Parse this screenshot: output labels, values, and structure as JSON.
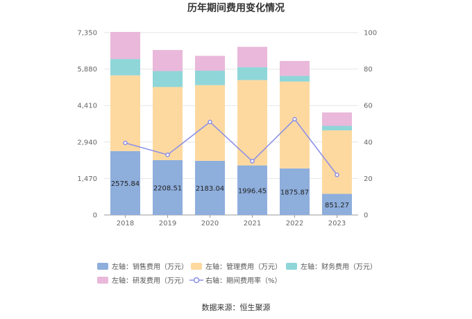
{
  "chart_data": {
    "type": "bar",
    "title": "历年期间费用变化情况",
    "categories": [
      "2018",
      "2019",
      "2020",
      "2021",
      "2022",
      "2023"
    ],
    "y_left": {
      "range": [
        0,
        7350
      ],
      "ticks": [
        "0",
        "1,470",
        "2,940",
        "4,410",
        "5,880",
        "7,350"
      ]
    },
    "y_right": {
      "range": [
        0,
        100
      ],
      "ticks": [
        "0",
        "20",
        "40",
        "60",
        "80",
        "100"
      ]
    },
    "series": [
      {
        "name": "左轴：销售费用（万元）",
        "axis": "left",
        "kind": "bar",
        "color": "#8eaedc",
        "values": [
          2575.84,
          2208.51,
          2183.04,
          1996.45,
          1875.87,
          851.27
        ],
        "labels": [
          "2575.84",
          "2208.51",
          "2183.04",
          "1996.45",
          "1875.87",
          "851.27"
        ]
      },
      {
        "name": "左轴：管理费用（万元）",
        "axis": "left",
        "kind": "bar",
        "color": "#fdd9a0",
        "values": [
          3050,
          2950,
          3050,
          3440,
          3500,
          2560
        ]
      },
      {
        "name": "左轴：财务费用（万元）",
        "axis": "left",
        "kind": "bar",
        "color": "#8fd6d9",
        "values": [
          660,
          640,
          580,
          520,
          230,
          180
        ]
      },
      {
        "name": "左轴：研发费用（万元）",
        "axis": "left",
        "kind": "bar",
        "color": "#e9b8da",
        "values": [
          1090,
          850,
          600,
          820,
          600,
          540
        ]
      },
      {
        "name": "右轴：期间费用率（%）",
        "axis": "right",
        "kind": "line",
        "color": "#8a8de8",
        "values": [
          39.5,
          33.0,
          51.0,
          29.5,
          52.5,
          22.0
        ]
      }
    ],
    "grid": true,
    "legend_position": "bottom"
  },
  "source": "数据来源：恒生聚源"
}
